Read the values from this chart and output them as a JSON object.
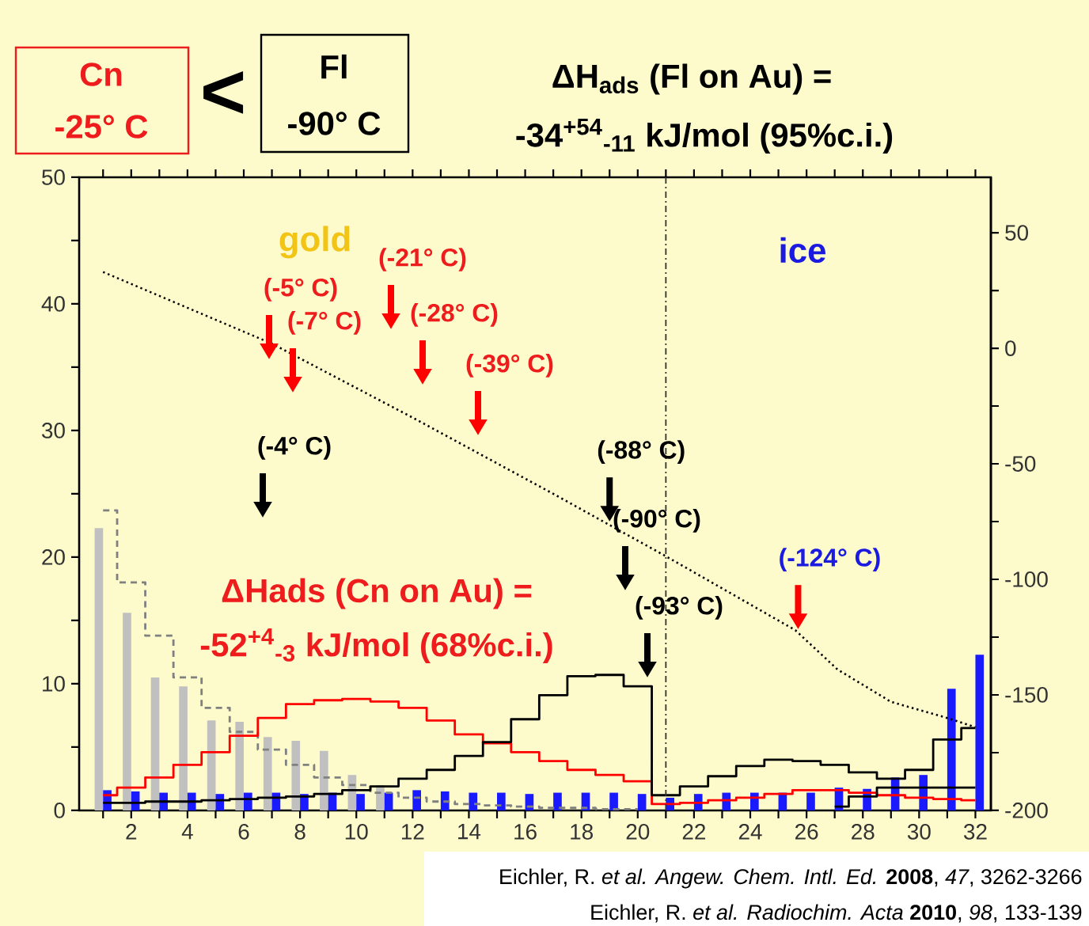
{
  "chart_data": {
    "type": "bar",
    "title": "ΔH$_{ads}$ (Fl on Au) =",
    "subtitle": "-34$^{+54}$$_{-11}$ kJ/mol (95%c.i.)",
    "xlim": [
      0.15,
      32.55
    ],
    "xticks": [
      {
        "value": 1,
        "label": null
      },
      2,
      {
        "value": 3,
        "label": null
      },
      4,
      {
        "value": 5,
        "label": null
      },
      6,
      {
        "value": 7,
        "label": null
      },
      8,
      {
        "value": 9,
        "label": null
      },
      10,
      {
        "value": 11,
        "label": null
      },
      12,
      {
        "value": 13,
        "label": null
      },
      14,
      {
        "value": 15,
        "label": null
      },
      16,
      {
        "value": 17,
        "label": null
      },
      18,
      {
        "value": 19,
        "label": null
      },
      20,
      {
        "value": 21,
        "label": null
      },
      22,
      {
        "value": 23,
        "label": null
      },
      24,
      {
        "value": 25,
        "label": null
      },
      26,
      {
        "value": 27,
        "label": null
      },
      28,
      {
        "value": 29,
        "label": null
      },
      30,
      {
        "value": 31,
        "label": null
      },
      32
    ],
    "ylim": [
      0,
      50
    ],
    "yticks": [
      0,
      {
        "value": 5,
        "label": null
      },
      10,
      {
        "value": 15,
        "label": null
      },
      20,
      {
        "value": 25,
        "label": null
      },
      30,
      {
        "value": 35,
        "label": null
      },
      40,
      {
        "value": 45,
        "label": null
      },
      50
    ],
    "y2lim": [
      -200,
      74
    ],
    "y2ticks": [
      -200,
      {
        "value": -175,
        "label": null
      },
      -150,
      {
        "value": -125,
        "label": null
      },
      -100,
      {
        "value": -75,
        "label": null
      },
      -50,
      {
        "value": -25,
        "label": null
      },
      0,
      {
        "value": 25,
        "label": null
      },
      50
    ],
    "series": [
      {
        "color": "#c0c0c0",
        "x": [
          1,
          2,
          3,
          4,
          5,
          6,
          7,
          8,
          9,
          10,
          11
        ],
        "values": [
          22.3,
          15.6,
          10.5,
          9.8,
          7.1,
          7.0,
          5.8,
          5.5,
          4.7,
          2.8,
          2.0
        ]
      },
      {
        "color": "#1a1aff",
        "x": [
          1,
          2,
          3,
          4,
          5,
          6,
          7,
          8,
          9,
          10,
          11,
          12,
          13,
          14,
          15,
          16,
          17,
          18,
          19,
          20,
          21,
          22,
          23,
          24,
          25,
          26,
          27,
          28,
          29,
          30,
          31,
          32
        ],
        "values": [
          1.6,
          1.5,
          1.4,
          1.4,
          1.3,
          1.4,
          1.4,
          1.3,
          1.4,
          1.3,
          1.4,
          1.6,
          1.5,
          1.4,
          1.4,
          1.3,
          1.4,
          1.4,
          1.4,
          1.3,
          1.0,
          1.3,
          1.4,
          1.4,
          1.4,
          1.4,
          1.8,
          1.7,
          2.6,
          2.8,
          9.6,
          12.3
        ]
      },
      {
        "type": "step",
        "color": "#808080",
        "line_style": "dashed",
        "x": [
          1,
          2,
          3,
          4,
          5,
          6,
          7,
          8,
          9,
          10,
          11,
          12,
          13,
          14,
          15,
          16,
          17,
          18,
          19,
          20
        ],
        "values": [
          23.7,
          18.0,
          13.8,
          10.5,
          8.1,
          6.2,
          4.8,
          3.6,
          2.6,
          2.0,
          1.4,
          1.0,
          0.7,
          0.5,
          0.4,
          0.3,
          0.2,
          0.2,
          0.1,
          0.1
        ]
      },
      {
        "type": "step",
        "color": "#ff0000",
        "x": [
          1,
          2,
          3,
          4,
          5,
          6,
          7,
          8,
          9,
          10,
          11,
          12,
          13,
          14,
          15,
          16,
          17,
          18,
          19,
          20,
          21,
          22,
          23,
          24,
          25,
          26,
          27,
          28,
          29,
          30,
          31,
          32
        ],
        "values": [
          1.2,
          1.8,
          2.6,
          3.6,
          4.6,
          5.9,
          7.3,
          8.4,
          8.7,
          8.8,
          8.6,
          8.1,
          7.1,
          6.0,
          5.3,
          4.6,
          3.9,
          3.2,
          2.8,
          2.3,
          0.5,
          0.6,
          0.8,
          1.0,
          1.3,
          1.6,
          1.6,
          1.4,
          1.2,
          1.0,
          0.9,
          0.8
        ]
      },
      {
        "type": "step",
        "color": "#000000",
        "x": [
          1,
          2,
          3,
          4,
          5,
          6,
          7,
          8,
          9,
          10,
          11,
          12,
          13,
          14,
          15,
          16,
          17,
          18,
          19,
          20,
          21,
          22,
          23,
          24,
          25,
          26,
          27,
          28,
          29,
          30,
          31,
          32
        ],
        "values": [
          0.6,
          0.6,
          0.7,
          0.7,
          0.8,
          0.9,
          1.0,
          1.1,
          1.3,
          1.6,
          1.9,
          2.5,
          3.2,
          4.3,
          5.4,
          7.2,
          9.1,
          10.6,
          10.7,
          9.8,
          1.2,
          1.9,
          2.7,
          3.5,
          4.0,
          3.9,
          3.6,
          3.0,
          2.5,
          3.2,
          5.6,
          6.5
        ]
      },
      {
        "type": "step",
        "color": "#000000",
        "x": [
          27,
          28,
          29,
          30,
          31,
          32
        ],
        "values": [
          0.3,
          1.1,
          1.8,
          1.8,
          1.8,
          1.8
        ]
      },
      {
        "type": "line",
        "axis": "y2",
        "color": "#000000",
        "line_style": "dotted",
        "x": [
          1,
          7,
          12,
          17,
          21,
          25.6,
          27.1,
          29,
          31,
          32
        ],
        "values": [
          33,
          2,
          -30,
          -63,
          -90,
          -122,
          -139,
          -153,
          -160,
          -164
        ]
      }
    ],
    "ref_lines": [
      {
        "axis": "x",
        "value": 21,
        "color": "#333333",
        "line_style": "dashdot"
      }
    ],
    "annotations": [
      "Cn",
      "-25° C",
      "<",
      "Fl",
      "-90° C",
      "gold",
      "ice",
      "ΔHads (Cn on Au) =",
      "-52$^{+4}$$_{-3}$ kJ/mol (68%c.i.)",
      "Eichler, R. *et al.* *Angew. Chem. Intl. Ed.* **2008**, *47*, 3262-3266",
      "Eichler, R. *et al.* *Radiochim. Acta* **2010**, *98*, 133-139",
      "(-5° C)",
      "(-7° C)",
      "(-21° C)",
      "(-28° C)",
      "(-39° C)",
      "(-4° C)",
      {
        "text": "(-88° C)",
        "x": 19.0,
        "y": 22.8
      },
      "(-90° C)",
      "(-93° C)",
      {
        "text": "(-124° C)",
        "x": 25.7,
        "y": 14.3
      }
    ]
  }
}
